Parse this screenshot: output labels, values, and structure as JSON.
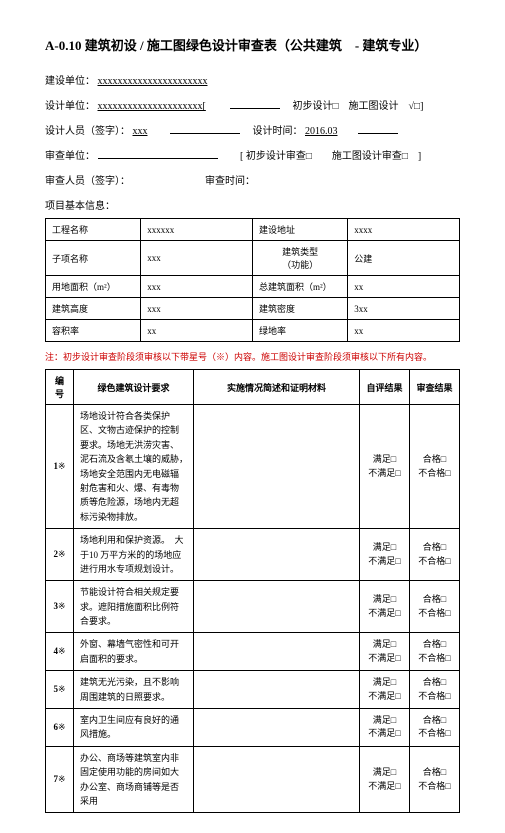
{
  "title": "A-0.10 建筑初设 / 施工图绿色设计审查表（公共建筑　- 建筑专业）",
  "fields": {
    "jsdw_label": "建设单位：",
    "jsdw_value": "xxxxxxxxxxxxxxxxxxxxxx",
    "sjdw_label": "设计单位：",
    "sjdw_value": "xxxxxxxxxxxxxxxxxxxxx[",
    "sjdw_suffix": "初步设计□　施工图设计　√□]",
    "sjry_label": "设计人员（签字）：",
    "sjry_value": "xxx",
    "sjsj_label": "设计时间：",
    "sjsj_value": "2016.03",
    "scdw_label": "审查单位：",
    "scdw_suffix": "[ 初步设计审查□　　施工图设计审查□　]",
    "scry_label": "审查人员（签字）：",
    "scsj_label": "审查时间：",
    "basic_info_label": "项目基本信息："
  },
  "info_table": [
    [
      "工程名称",
      "xxxxxx",
      "建设地址",
      "xxxx"
    ],
    [
      "子项名称",
      "xxx",
      "建筑类型（功能）",
      "公建"
    ],
    [
      "用地面积（m²）",
      "xxx",
      "总建筑面积（m²）",
      "xx"
    ],
    [
      "建筑高度",
      "xxx",
      "建筑密度",
      "3xx"
    ],
    [
      "容积率",
      "xx",
      "绿地率",
      "xx"
    ]
  ],
  "note": "注：初步设计审查阶段须审核以下带星号（※）内容。施工图设计审查阶段须审核以下所有内容。",
  "req_headers": [
    "编号",
    "绿色建筑设计要求",
    "实施情况简述和证明材料",
    "自评结果",
    "审查结果"
  ],
  "req_rows": [
    {
      "num": "1※",
      "req": "场地设计符合各类保护区、文物古迹保护的控制要求。场地无洪涝灾害、泥石流及含氡土壤的威胁，　场地安全范围内无电磁辐射危害和火、爆、有毒物质等危险源，场地内无超标污染物排放。",
      "self": "满足□\n不满足□",
      "chk": "合格□\n不合格□"
    },
    {
      "num": "2※",
      "req": "场地利用和保护资源。　大于10 万平方米的的场地应进行用水专项规划设计。",
      "self": "满足□\n不满足□",
      "chk": "合格□\n不合格□"
    },
    {
      "num": "3※",
      "req": "节能设计符合相关规定要求。遮阳措施面积比例符合要求。",
      "self": "满足□\n不满足□",
      "chk": "合格□\n不合格□"
    },
    {
      "num": "4※",
      "req": "外窗、幕墙气密性和可开启面积的要求。",
      "self": "满足□\n不满足□",
      "chk": "合格□\n不合格□"
    },
    {
      "num": "5※",
      "req": "建筑无光污染，且不影响周围建筑的日照要求。",
      "self": "满足□\n不满足□",
      "chk": "合格□\n不合格□"
    },
    {
      "num": "6※",
      "req": "室内卫生间应有良好的通风措施。",
      "self": "满足□\n不满足□",
      "chk": "合格□\n不合格□"
    },
    {
      "num": "7※",
      "req": "办公、商场等建筑室内非固定使用功能的房间如大办公室、商场商铺等是否采用",
      "self": "满足□\n不满足□",
      "chk": "合格□\n不合格□"
    }
  ]
}
